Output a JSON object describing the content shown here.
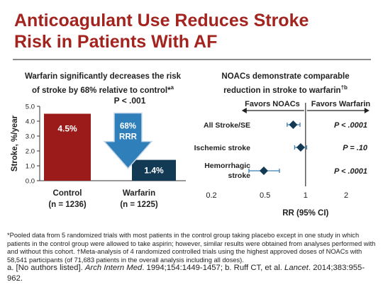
{
  "title": {
    "line1": "Anticoagulant Use Reduces Stroke",
    "line2": "Risk in Patients With AF"
  },
  "colors": {
    "title": "#a3231f",
    "control_bar": "#9b1b1b",
    "warfarin_bar": "#123a55",
    "arrow": "#2f7fbb",
    "marker": "#123a55",
    "ci": "#3a7fb3"
  },
  "chart_data": [
    {
      "type": "bar",
      "subtitle": {
        "line1": "Warfarin significantly decreases the risk",
        "line2": "of stroke by 68% relative to control*",
        "sup": "a"
      },
      "ylabel": "Stroke, %/year",
      "ylim": [
        0,
        5
      ],
      "yticks": [
        "0.0",
        "1.0",
        "2.0",
        "3.0",
        "4.0",
        "5.0"
      ],
      "grid": false,
      "categories": [
        {
          "name": "Control",
          "n": "(n = 1236)"
        },
        {
          "name": "Warfarin",
          "n": "(n = 1225)"
        }
      ],
      "values": [
        4.5,
        1.4
      ],
      "data_labels": [
        "4.5%",
        "1.4%"
      ],
      "pvalue": "P < .001",
      "annotation": {
        "line1": "68%",
        "line2": "RRR"
      }
    },
    {
      "type": "scatter",
      "subtitle": {
        "line1": "NOACs demonstrate comparable",
        "line2": "reduction in stroke to warfarin",
        "sup": "†b"
      },
      "xlabel": "RR (95% CI)",
      "xscale": "log",
      "xlim": [
        0.2,
        2
      ],
      "xticks": [
        {
          "value": 0.2,
          "label": "0.2"
        },
        {
          "value": 0.5,
          "label": "0.5"
        },
        {
          "value": 1,
          "label": "1"
        },
        {
          "value": 2,
          "label": "2"
        }
      ],
      "reference_line": 1,
      "favors_left": "Favors NOACs",
      "favors_right": "Favors Warfarin",
      "rows": [
        {
          "label": "All Stroke/SE",
          "rr": 0.81,
          "ci": [
            0.73,
            0.91
          ],
          "p": "P < .0001"
        },
        {
          "label": "Ischemic stroke",
          "rr": 0.92,
          "ci": [
            0.83,
            1.02
          ],
          "p": "P = .10"
        },
        {
          "label": "Hemorrhagic",
          "label2": "stroke",
          "rr": 0.49,
          "ci": [
            0.38,
            0.64
          ],
          "p": "P < .0001"
        }
      ]
    }
  ],
  "footnote": "*Pooled data from 5 randomized trials with most patients in the control group taking placebo except in one study in which patients in the control group were allowed to take aspirin; however, similar results were obtained from analyses performed with and without this cohort. †Meta-analysis of 4 randomized controlled trials using the highest approved doses of NOACs with 58,541 participants (of 71,683 patients in the overall analysis including all doses).",
  "references": {
    "part1": "a. [No authors listed]. ",
    "journal1": "Arch Intern Med",
    "part2": ". 1994;154:1449-1457; b. Ruff CT, et al. ",
    "journal2": "Lancet",
    "part3": ". 2014;383:955-962."
  }
}
